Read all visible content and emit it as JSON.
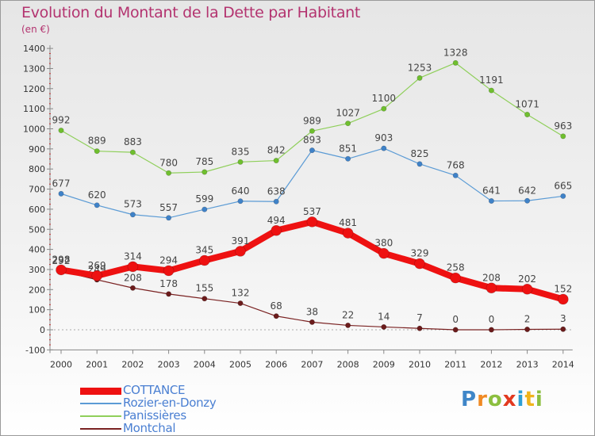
{
  "title": "Evolution du Montant de la Dette par Habitant",
  "unit": "(en €)",
  "logo": {
    "text": "Proxiti",
    "letters": [
      {
        "ch": "P",
        "color": "#3f86c8"
      },
      {
        "ch": "r",
        "color": "#f08a24"
      },
      {
        "ch": "o",
        "color": "#8cbf3f"
      },
      {
        "ch": "x",
        "color": "#e2391f"
      },
      {
        "ch": "i",
        "color": "#2e9fd4"
      },
      {
        "ch": "t",
        "color": "#f0b41c"
      },
      {
        "ch": "i",
        "color": "#8cbf3f"
      }
    ]
  },
  "chart_data": {
    "type": "line",
    "title": "Evolution du Montant de la Dette par Habitant",
    "ylabel": "(en €)",
    "xlabel": "",
    "ylim": [
      -100,
      1400
    ],
    "yticks": [
      -100,
      0,
      100,
      200,
      300,
      400,
      500,
      600,
      700,
      800,
      900,
      1000,
      1100,
      1200,
      1300,
      1400
    ],
    "grid": false,
    "legend_position": "bottom-left",
    "x": [
      "2000",
      "2001",
      "2002",
      "2003",
      "2004",
      "2005",
      "2006",
      "2007",
      "2008",
      "2009",
      "2010",
      "2011",
      "2012",
      "2013",
      "2014"
    ],
    "series": [
      {
        "name": "Panissières",
        "color": "#8fcf5a",
        "point_color": "#6fbf2e",
        "width": 1.2,
        "marker": 3.2,
        "values": [
          992,
          889,
          883,
          780,
          785,
          835,
          842,
          989,
          1027,
          1100,
          1253,
          1328,
          1191,
          1071,
          963
        ]
      },
      {
        "name": "Rozier-en-Donzy",
        "color": "#5b9bd5",
        "point_color": "#3f82c8",
        "width": 1.2,
        "marker": 3.2,
        "values": [
          677,
          620,
          573,
          557,
          599,
          640,
          638,
          893,
          851,
          903,
          825,
          768,
          641,
          642,
          665
        ]
      },
      {
        "name": "Montchal",
        "color": "#7a2222",
        "point_color": "#6b1b1b",
        "width": 1.2,
        "marker": 3.2,
        "values": [
          292,
          249,
          208,
          178,
          155,
          132,
          68,
          38,
          22,
          14,
          7,
          0,
          0,
          2,
          3
        ]
      },
      {
        "name": "COTTANCE",
        "color": "#ee1111",
        "point_color": "#ee1111",
        "width": 8,
        "marker": 6.5,
        "values": [
          298,
          269,
          314,
          294,
          345,
          391,
          494,
          537,
          481,
          380,
          329,
          258,
          208,
          202,
          152
        ]
      }
    ],
    "legend_order": [
      "COTTANCE",
      "Rozier-en-Donzy",
      "Panissières",
      "Montchal"
    ]
  }
}
